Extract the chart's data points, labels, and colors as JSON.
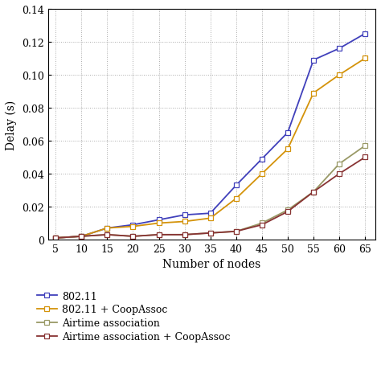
{
  "x": [
    5,
    10,
    15,
    20,
    25,
    30,
    35,
    40,
    45,
    50,
    55,
    60,
    65
  ],
  "series": [
    {
      "name": "802.11",
      "y": [
        0.001,
        0.002,
        0.007,
        0.009,
        0.012,
        0.015,
        0.016,
        0.033,
        0.049,
        0.065,
        0.109,
        0.116,
        0.125
      ],
      "color": "#4040bb",
      "label": "802.11"
    },
    {
      "name": "802.11 + CoopAssoc",
      "y": [
        0.001,
        0.002,
        0.007,
        0.008,
        0.01,
        0.011,
        0.013,
        0.025,
        0.04,
        0.055,
        0.089,
        0.1,
        0.11
      ],
      "color": "#d4930a",
      "label": "802.11 + CoopAssoc"
    },
    {
      "name": "Airtime association",
      "y": [
        0.001,
        0.002,
        0.003,
        0.002,
        0.003,
        0.003,
        0.004,
        0.005,
        0.01,
        0.018,
        0.029,
        0.046,
        0.057
      ],
      "color": "#999966",
      "label": "Airtime association"
    },
    {
      "name": "Airtime association + CoopAssoc",
      "y": [
        0.001,
        0.002,
        0.003,
        0.002,
        0.003,
        0.003,
        0.004,
        0.005,
        0.009,
        0.017,
        0.029,
        0.04,
        0.05
      ],
      "color": "#883333",
      "label": "Airtime association + CoopAssoc"
    }
  ],
  "xlabel": "Number of nodes",
  "ylabel": "Delay (s)",
  "xlim": [
    3.5,
    67
  ],
  "ylim": [
    0,
    0.14
  ],
  "xticks": [
    5,
    10,
    15,
    20,
    25,
    30,
    35,
    40,
    45,
    50,
    55,
    60,
    65
  ],
  "yticks": [
    0,
    0.02,
    0.04,
    0.06,
    0.08,
    0.1,
    0.12,
    0.14
  ],
  "marker": "s",
  "markersize": 4.5,
  "linewidth": 1.3
}
